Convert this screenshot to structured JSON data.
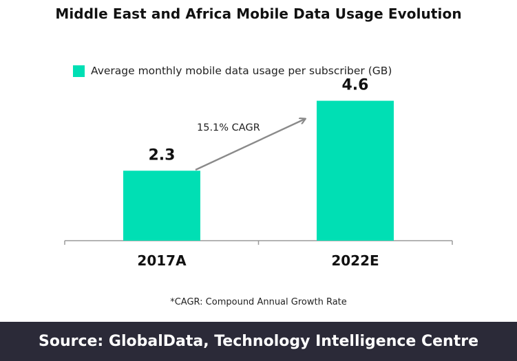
{
  "title": "Middle East and Africa Mobile Data Usage Evolution",
  "colors": {
    "bar": "#00dfb4",
    "arrow": "#8a8a8a",
    "axis": "#9a9a9a",
    "source_band": "#2b2a38"
  },
  "chart_data": {
    "type": "bar",
    "title": "Middle East and Africa Mobile Data Usage Evolution",
    "categories": [
      "2017A",
      "2022E"
    ],
    "series": [
      {
        "name": "Average monthly mobile data usage per subscriber (GB)",
        "values": [
          2.3,
          4.6
        ]
      }
    ],
    "data_labels": [
      "2.3",
      "4.6"
    ],
    "annotation": "15.1% CAGR",
    "xlabel": "",
    "ylabel": "",
    "ylim": [
      0,
      5.2
    ],
    "grid": false,
    "legend": "top-left"
  },
  "footnote": "*CAGR: Compound Annual Growth Rate",
  "source": "Source: GlobalData, Technology Intelligence Centre"
}
